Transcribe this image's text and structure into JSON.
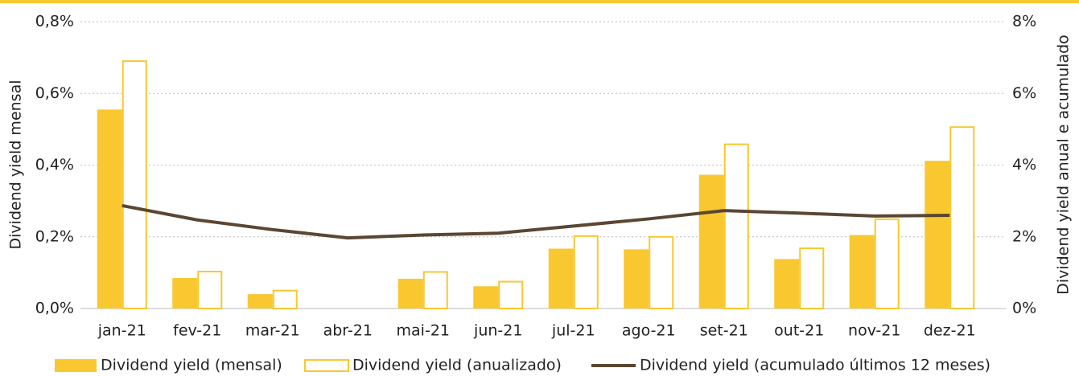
{
  "chart_data": {
    "type": "bar_line",
    "ylabel": "Dividend yield mensal",
    "y2label": "Dividend yield anual e acumulado",
    "categories": [
      "jan-21",
      "fev-21",
      "mar-21",
      "abr-21",
      "mai-21",
      "jun-21",
      "jul-21",
      "ago-21",
      "set-21",
      "out-21",
      "nov-21",
      "dez-21"
    ],
    "series": [
      {
        "name": "Dividend yield (mensal)",
        "color": "#f9c72f",
        "kind": "bar",
        "axis": "y",
        "values": [
          0.555,
          0.085,
          0.04,
          0,
          0.083,
          0.062,
          0.167,
          0.165,
          0.373,
          0.138,
          0.205,
          0.412
        ]
      },
      {
        "name": "Dividend yield (anualizado)",
        "color": "#f9c72f",
        "kind": "hollow-bar",
        "axis": "y2",
        "values": [
          6.9,
          1.03,
          0.5,
          0,
          1.02,
          0.75,
          2.02,
          2.0,
          4.58,
          1.68,
          2.49,
          5.06
        ]
      },
      {
        "name": "Dividend yield (acumulado últimos 12 meses)",
        "color": "#5a4632",
        "kind": "line",
        "axis": "y2",
        "values": [
          2.87,
          2.47,
          2.2,
          1.97,
          2.05,
          2.1,
          2.3,
          2.5,
          2.73,
          2.66,
          2.58,
          2.6
        ]
      }
    ],
    "ylim": [
      0,
      0.8
    ],
    "yticks": [
      {
        "value": 0,
        "label": "0,0%"
      },
      {
        "value": 0.2,
        "label": "0,2%"
      },
      {
        "value": 0.4,
        "label": "0,4%"
      },
      {
        "value": 0.6,
        "label": "0,6%"
      },
      {
        "value": 0.8,
        "label": "0,8%"
      }
    ],
    "y2lim": [
      0,
      8
    ],
    "y2ticks": [
      {
        "value": 0,
        "label": "0%"
      },
      {
        "value": 2,
        "label": "2%"
      },
      {
        "value": 4,
        "label": "4%"
      },
      {
        "value": 6,
        "label": "6%"
      },
      {
        "value": 8,
        "label": "8%"
      }
    ],
    "grid": true
  }
}
